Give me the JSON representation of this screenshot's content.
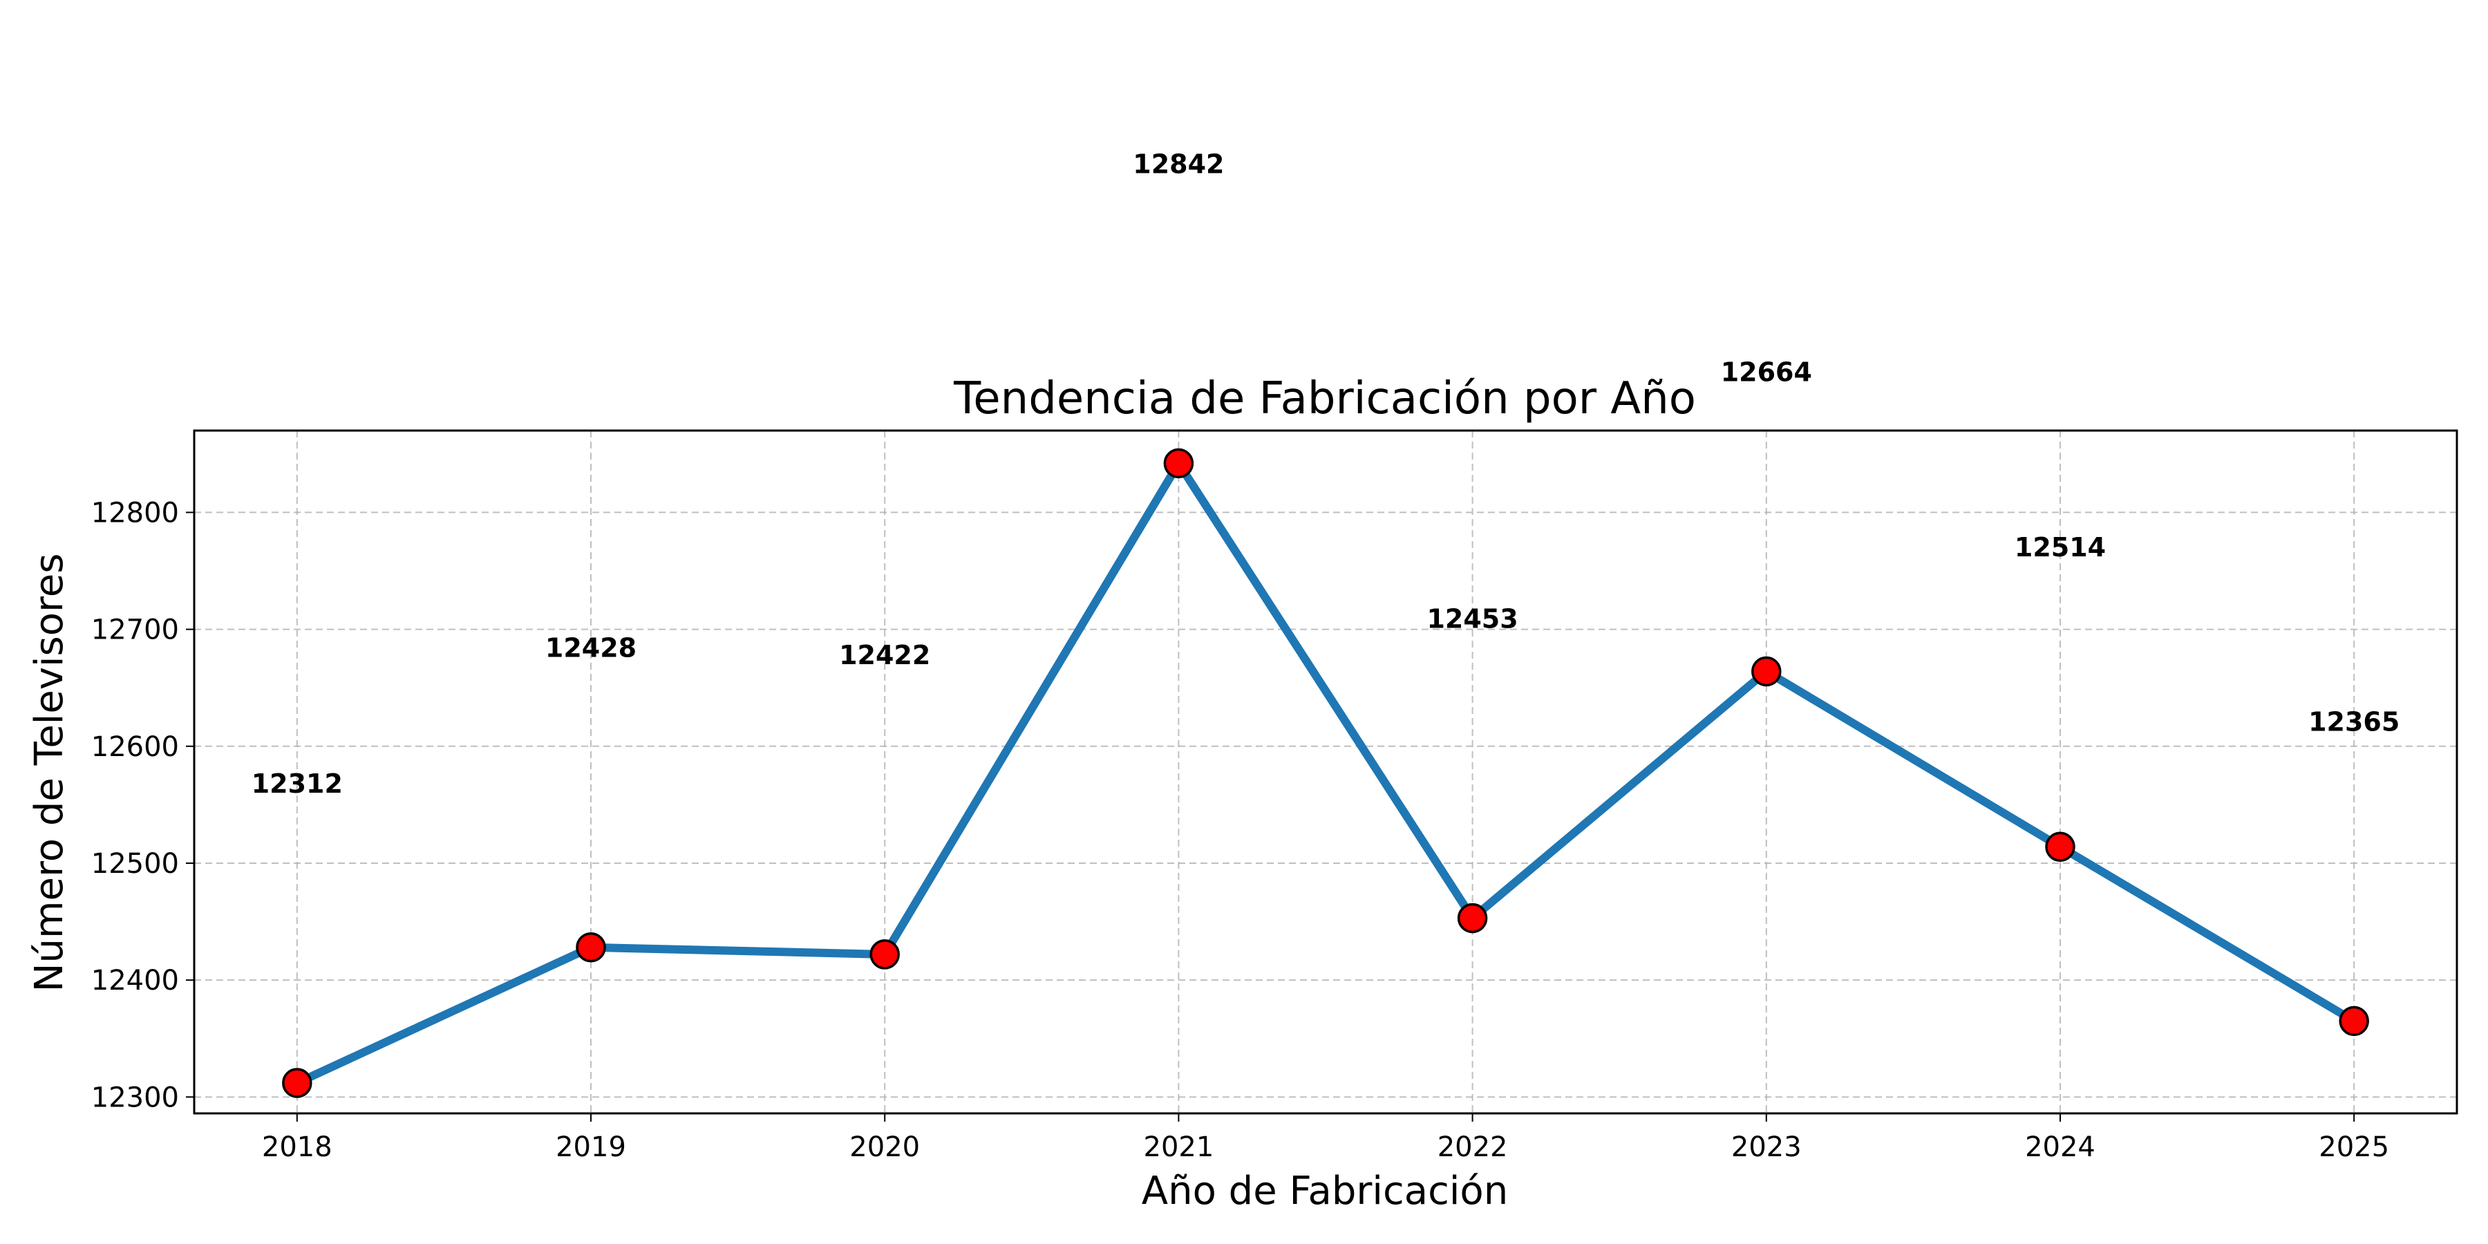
{
  "chart_data": {
    "type": "line",
    "title": "Tendencia de Fabricación por Año",
    "xlabel": "Año de Fabricación",
    "ylabel": "Número de Televisores",
    "x": [
      2018,
      2019,
      2020,
      2021,
      2022,
      2023,
      2024,
      2025
    ],
    "x_tick_labels": [
      "2018",
      "2019",
      "2020",
      "2021",
      "2022",
      "2023",
      "2024",
      "2025"
    ],
    "y_ticks": [
      12300,
      12400,
      12500,
      12600,
      12700,
      12800
    ],
    "y_tick_labels": [
      "12300",
      "12400",
      "12500",
      "12600",
      "12700",
      "12800"
    ],
    "xlim": [
      2017.65,
      2025.35
    ],
    "ylim": [
      12286,
      12870
    ],
    "grid": true,
    "series": [
      {
        "values": [
          12312,
          12428,
          12422,
          12842,
          12453,
          12664,
          12514,
          12365
        ],
        "line_color": "#1f77b4",
        "marker_color": "#ff0000",
        "marker_edge_color": "#000000"
      }
    ],
    "data_labels": [
      "12312",
      "12428",
      "12422",
      "12842",
      "12453",
      "12664",
      "12514",
      "12365"
    ]
  }
}
